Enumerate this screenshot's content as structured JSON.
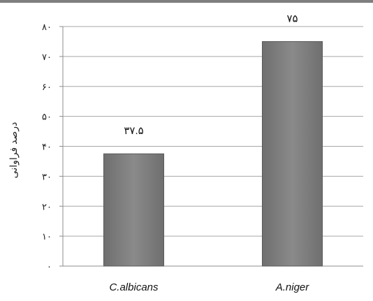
{
  "chart_data": {
    "type": "bar",
    "title": "",
    "xlabel": "",
    "ylabel": "درصد فراوانی",
    "categories": [
      "C.albicans",
      "A.niger"
    ],
    "values": [
      37.5,
      75
    ],
    "value_labels": [
      "۳۷.۵",
      "۷۵"
    ],
    "ylim": [
      0,
      80
    ],
    "yticks": [
      0,
      10,
      20,
      30,
      40,
      50,
      60,
      70,
      80
    ],
    "ytick_labels": [
      "۰",
      "۱۰",
      "۲۰",
      "۳۰",
      "۴۰",
      "۵۰",
      "۶۰",
      "۷۰",
      "۸۰"
    ],
    "grid": true,
    "legend": "none",
    "colors": {
      "bar": "#7f7f7f",
      "bar_edge": "#5a5a5a",
      "grid": "#a6a6a6",
      "axis": "#8c8c8c"
    }
  }
}
